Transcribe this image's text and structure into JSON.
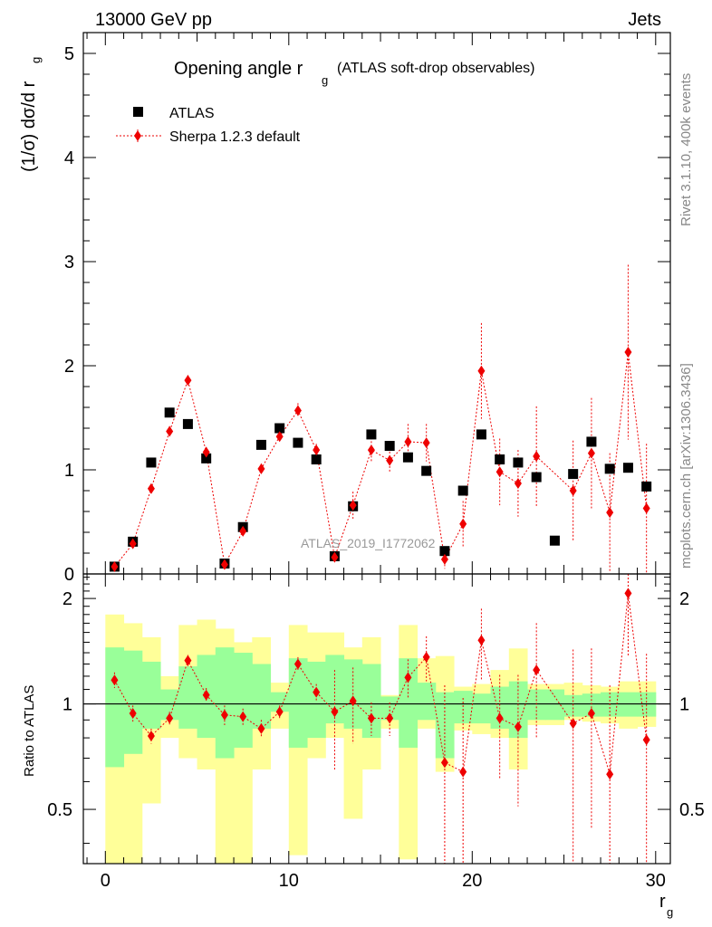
{
  "header": {
    "left": "13000 GeV pp",
    "right": "Jets",
    "title": "Opening angle r",
    "title_sub": "g",
    "title_suffix": "(ATLAS soft-drop observables)"
  },
  "side_text": {
    "rivet": "Rivet 3.1.10,  400k events",
    "mcplots": "mcplots.cern.ch [arXiv:1306.3436]"
  },
  "watermark": "ATLAS_2019_I1772062",
  "legend": {
    "data_label": "ATLAS",
    "mc_label": "Sherpa 1.2.3 default"
  },
  "axes": {
    "ylabel_main": "(1/σ) dσ/d r",
    "ylabel_main_sub": "g",
    "ylabel_ratio": "Ratio to ATLAS",
    "xlabel": "r",
    "xlabel_sub": "g"
  },
  "colors": {
    "data": "#000000",
    "mc": "#ee0000",
    "band_inner": "#99ff99",
    "band_outer": "#ffff99"
  },
  "chart_data": [
    {
      "type": "scatter",
      "panel": "main",
      "xlim": [
        -1.2,
        30.8
      ],
      "ylim": [
        0,
        5.2
      ],
      "xticks": [
        0,
        10,
        20,
        30
      ],
      "yticks": [
        0,
        1,
        2,
        3,
        4,
        5
      ],
      "ytick_labels": [
        "0",
        "1",
        "2",
        "3",
        "4",
        "5"
      ],
      "grid": false,
      "legend_position": "top-left",
      "series": [
        {
          "name": "ATLAS",
          "x": [
            0.5,
            1.5,
            2.5,
            3.5,
            4.5,
            5.5,
            6.5,
            7.5,
            8.5,
            9.5,
            10.5,
            11.5,
            12.5,
            13.5,
            14.5,
            15.5,
            16.5,
            17.5,
            18.5,
            19.5,
            20.5,
            21.5,
            22.5,
            23.5,
            24.5,
            25.5,
            26.5,
            27.5,
            28.5,
            29.5
          ],
          "y": [
            0.07,
            0.31,
            1.07,
            1.55,
            1.44,
            1.11,
            0.1,
            0.45,
            1.24,
            1.4,
            1.26,
            1.1,
            0.17,
            0.65,
            1.34,
            1.23,
            1.12,
            0.99,
            0.22,
            0.8,
            1.34,
            1.1,
            1.07,
            0.93,
            0.32,
            0.96,
            1.27,
            1.01,
            1.02,
            0.84
          ]
        },
        {
          "name": "Sherpa 1.2.3 default",
          "x": [
            0.5,
            1.5,
            2.5,
            3.5,
            4.5,
            5.5,
            6.5,
            7.5,
            8.5,
            9.5,
            10.5,
            11.5,
            12.5,
            13.5,
            14.5,
            15.5,
            16.5,
            17.5,
            18.5,
            19.5,
            20.5,
            21.5,
            22.5,
            23.5,
            25.5,
            26.5,
            27.5,
            28.5,
            29.5
          ],
          "y": [
            0.07,
            0.29,
            0.82,
            1.37,
            1.86,
            1.17,
            0.09,
            0.41,
            1.01,
            1.32,
            1.57,
            1.19,
            0.16,
            0.66,
            1.19,
            1.09,
            1.27,
            1.26,
            0.14,
            0.48,
            1.95,
            0.98,
            0.87,
            1.13,
            0.8,
            1.16,
            0.59,
            2.13,
            0.63
          ],
          "y_err": [
            0.01,
            0.03,
            0.04,
            0.05,
            0.05,
            0.05,
            0.02,
            0.03,
            0.05,
            0.05,
            0.07,
            0.06,
            0.05,
            0.13,
            0.12,
            0.12,
            0.17,
            0.18,
            0.09,
            0.22,
            0.46,
            0.32,
            0.32,
            0.48,
            0.48,
            0.53,
            0.57,
            0.84,
            0.62
          ]
        }
      ]
    },
    {
      "type": "scatter",
      "panel": "ratio",
      "xlim": [
        -1.2,
        30.8
      ],
      "ylim": [
        0.35,
        2.35
      ],
      "log_y": true,
      "xticks": [
        0,
        10,
        20,
        30
      ],
      "xtick_labels": [
        "0",
        "10",
        "20",
        "30"
      ],
      "yticks": [
        0.5,
        1,
        2
      ],
      "ytick_labels": [
        "0.5",
        "1",
        "2"
      ],
      "reference_line": 1,
      "bands": {
        "x_low": [
          0,
          1,
          2,
          3,
          4,
          5,
          6,
          7,
          8,
          9,
          10,
          11,
          12,
          13,
          14,
          15,
          16,
          17,
          18,
          19,
          20,
          21,
          22,
          23,
          24,
          25,
          26,
          27,
          28,
          29
        ],
        "x_high": [
          1,
          2,
          3,
          4,
          5,
          6,
          7,
          8,
          9,
          10,
          11,
          12,
          13,
          14,
          15,
          16,
          17,
          18,
          19,
          20,
          21,
          22,
          23,
          24,
          25,
          26,
          27,
          28,
          29,
          30
        ],
        "inner_low": [
          0.66,
          0.72,
          0.85,
          0.9,
          0.85,
          0.8,
          0.7,
          0.75,
          0.85,
          0.95,
          0.75,
          0.8,
          0.88,
          0.85,
          0.8,
          0.9,
          0.75,
          0.9,
          0.7,
          0.88,
          0.88,
          0.85,
          0.8,
          0.9,
          0.9,
          0.92,
          0.92,
          0.92,
          0.92,
          0.92
        ],
        "inner_high": [
          1.45,
          1.42,
          1.32,
          1.1,
          1.28,
          1.38,
          1.45,
          1.4,
          1.3,
          1.08,
          1.35,
          1.32,
          1.38,
          1.34,
          1.3,
          1.05,
          1.35,
          1.15,
          1.08,
          1.09,
          1.07,
          1.12,
          1.16,
          1.1,
          1.1,
          1.06,
          1.07,
          1.08,
          1.08,
          1.08
        ],
        "outer_low": [
          0.3,
          0.35,
          0.52,
          0.8,
          0.7,
          0.65,
          0.35,
          0.34,
          0.65,
          0.85,
          0.37,
          0.7,
          0.8,
          0.47,
          0.65,
          0.85,
          0.36,
          0.85,
          0.64,
          0.84,
          0.82,
          0.8,
          0.65,
          0.87,
          0.87,
          0.9,
          0.89,
          0.88,
          0.85,
          0.86
        ],
        "outer_high": [
          1.8,
          1.7,
          1.55,
          1.2,
          1.68,
          1.74,
          1.64,
          1.5,
          1.55,
          1.15,
          1.68,
          1.6,
          1.6,
          1.45,
          1.55,
          1.06,
          1.68,
          1.35,
          1.37,
          1.12,
          1.14,
          1.25,
          1.44,
          1.14,
          1.14,
          1.15,
          1.13,
          1.12,
          1.16,
          1.16
        ]
      },
      "series": [
        {
          "name": "Sherpa 1.2.3 default",
          "x": [
            0.5,
            1.5,
            2.5,
            3.5,
            4.5,
            5.5,
            6.5,
            7.5,
            8.5,
            9.5,
            10.5,
            11.5,
            12.5,
            13.5,
            14.5,
            15.5,
            16.5,
            17.5,
            18.5,
            19.5,
            20.5,
            21.5,
            22.5,
            23.5,
            25.5,
            26.5,
            27.5,
            28.5,
            29.5
          ],
          "y": [
            1.17,
            0.94,
            0.81,
            0.91,
            1.33,
            1.06,
            0.93,
            0.92,
            0.85,
            0.95,
            1.3,
            1.08,
            0.95,
            1.02,
            0.91,
            0.91,
            1.19,
            1.36,
            0.68,
            0.64,
            1.52,
            0.91,
            0.86,
            1.25,
            0.88,
            0.94,
            0.63,
            2.07,
            0.79
          ],
          "y_err": [
            0.06,
            0.05,
            0.04,
            0.04,
            0.05,
            0.05,
            0.06,
            0.05,
            0.05,
            0.04,
            0.06,
            0.06,
            0.3,
            0.25,
            0.1,
            0.1,
            0.15,
            0.2,
            0.45,
            0.4,
            0.35,
            0.3,
            0.35,
            0.45,
            0.55,
            0.5,
            0.5,
            0.7,
            0.6
          ]
        }
      ]
    }
  ]
}
